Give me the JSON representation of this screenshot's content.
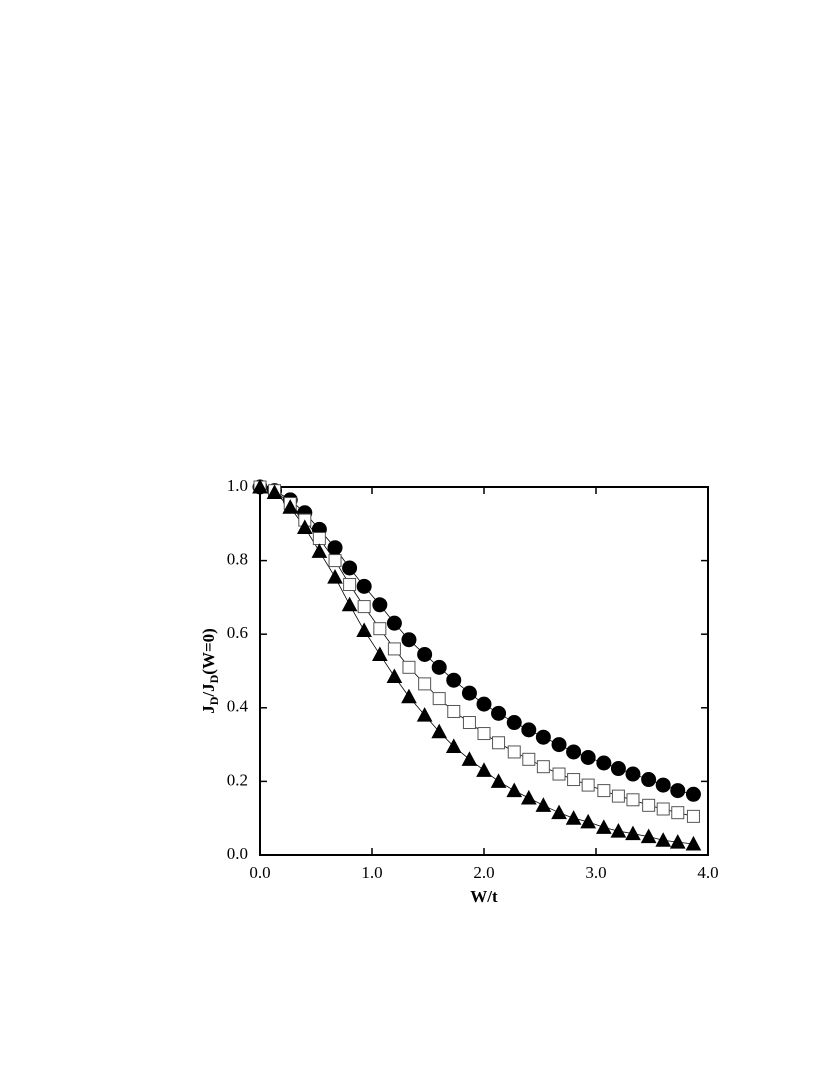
{
  "chart_data": {
    "type": "line",
    "x_label": "W/t",
    "y_label": "JD/JD(W=0)",
    "x": [
      0,
      0.13,
      0.27,
      0.4,
      0.53,
      0.67,
      0.8,
      0.93,
      1.07,
      1.2,
      1.33,
      1.47,
      1.6,
      1.73,
      1.87,
      2.0,
      2.13,
      2.27,
      2.4,
      2.53,
      2.67,
      2.8,
      2.93,
      3.07,
      3.2,
      3.33,
      3.47,
      3.6,
      3.73,
      3.87
    ],
    "series": [
      {
        "color": "#000000",
        "marker": "circle",
        "filled": true,
        "values": [
          1.0,
          0.99,
          0.965,
          0.93,
          0.885,
          0.835,
          0.78,
          0.73,
          0.68,
          0.63,
          0.585,
          0.545,
          0.51,
          0.475,
          0.44,
          0.41,
          0.385,
          0.36,
          0.34,
          0.32,
          0.3,
          0.28,
          0.265,
          0.25,
          0.235,
          0.22,
          0.205,
          0.19,
          0.175,
          0.165
        ]
      },
      {
        "color": "#000000",
        "marker": "square",
        "filled": false,
        "values": [
          1.0,
          0.99,
          0.955,
          0.91,
          0.86,
          0.8,
          0.735,
          0.675,
          0.615,
          0.56,
          0.51,
          0.465,
          0.425,
          0.39,
          0.36,
          0.33,
          0.305,
          0.28,
          0.26,
          0.24,
          0.22,
          0.205,
          0.19,
          0.175,
          0.16,
          0.15,
          0.135,
          0.125,
          0.115,
          0.105
        ]
      },
      {
        "color": "#000000",
        "marker": "triangle",
        "filled": true,
        "values": [
          1.0,
          0.985,
          0.945,
          0.89,
          0.825,
          0.755,
          0.68,
          0.61,
          0.545,
          0.485,
          0.43,
          0.38,
          0.335,
          0.295,
          0.26,
          0.23,
          0.2,
          0.175,
          0.155,
          0.135,
          0.115,
          0.1,
          0.09,
          0.075,
          0.065,
          0.058,
          0.05,
          0.04,
          0.035,
          0.03
        ]
      }
    ],
    "xlim": [
      0,
      4
    ],
    "ylim": [
      0,
      1
    ],
    "xticks": [
      {
        "value": 0,
        "label": "0.0"
      },
      {
        "value": 1,
        "label": "1.0"
      },
      {
        "value": 2,
        "label": "2.0"
      },
      {
        "value": 3,
        "label": "3.0"
      },
      {
        "value": 4,
        "label": "4.0"
      }
    ],
    "yticks": [
      {
        "value": 0,
        "label": "0.0"
      },
      {
        "value": 0.2,
        "label": "0.2"
      },
      {
        "value": 0.4,
        "label": "0.4"
      },
      {
        "value": 0.6,
        "label": "0.6"
      },
      {
        "value": 0.8,
        "label": "0.8"
      },
      {
        "value": 1,
        "label": "1.0"
      }
    ],
    "grid": false
  }
}
